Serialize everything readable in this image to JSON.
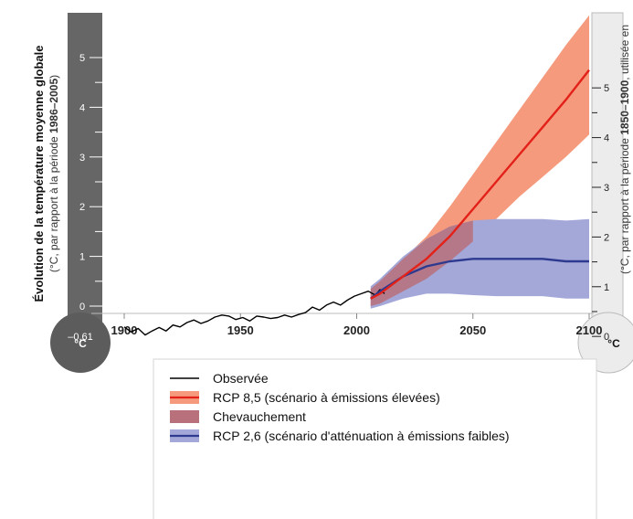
{
  "chart_data": {
    "type": "line",
    "title": "",
    "xlabel": "",
    "ylabel_left": "Évolution de la température moyenne globale",
    "ylabel_left_sub_prefix": "(°C, par rapport à la période ",
    "ylabel_left_sub_bold": "1986–2005",
    "ylabel_left_sub_suffix": ")",
    "ylabel_right_prefix": "(°C, par rapport à la période ",
    "ylabel_right_bold": "1850–1900",
    "ylabel_right_suffix": ", utilisée en",
    "xlim": [
      1895,
      2100
    ],
    "ylim_left": [
      -0.61,
      5.6
    ],
    "ylim_right": [
      0,
      6.2
    ],
    "right_axis_offset": 0.61,
    "x_ticks": [
      1900,
      1950,
      2000,
      2050,
      2100
    ],
    "y_ticks_left": [
      "0",
      "1",
      "2",
      "3",
      "4",
      "5"
    ],
    "y_ticks_right": [
      "0",
      "1",
      "2",
      "3",
      "4",
      "5"
    ],
    "left_floor_label": "–0,61",
    "unit_label_left": "°C",
    "unit_label_right": "°C",
    "grid": false,
    "legend_position": "bottom",
    "series": [
      {
        "name": "Observée",
        "color": "#000000",
        "x": [
          1900,
          1903,
          1906,
          1909,
          1912,
          1915,
          1918,
          1921,
          1924,
          1927,
          1930,
          1933,
          1936,
          1939,
          1942,
          1945,
          1948,
          1951,
          1954,
          1957,
          1960,
          1963,
          1966,
          1969,
          1972,
          1975,
          1978,
          1981,
          1984,
          1987,
          1990,
          1993,
          1996,
          1999,
          2002,
          2005,
          2008,
          2010,
          2012
        ],
        "y": [
          -0.42,
          -0.52,
          -0.45,
          -0.58,
          -0.5,
          -0.43,
          -0.5,
          -0.38,
          -0.42,
          -0.33,
          -0.28,
          -0.35,
          -0.3,
          -0.22,
          -0.18,
          -0.2,
          -0.27,
          -0.23,
          -0.3,
          -0.2,
          -0.22,
          -0.25,
          -0.23,
          -0.18,
          -0.22,
          -0.17,
          -0.13,
          -0.02,
          -0.08,
          0.02,
          0.08,
          0.02,
          0.12,
          0.2,
          0.25,
          0.3,
          0.22,
          0.33,
          0.25
        ]
      },
      {
        "name": "RCP 8,5 (scénario à émissions élevées)",
        "color": "#e32119",
        "band_color": "#f59a7d",
        "x": [
          2006,
          2010,
          2020,
          2030,
          2040,
          2050,
          2060,
          2070,
          2080,
          2090,
          2100
        ],
        "y": [
          0.15,
          0.25,
          0.6,
          0.95,
          1.4,
          1.95,
          2.5,
          3.05,
          3.6,
          4.15,
          4.75
        ],
        "low": [
          0.0,
          0.05,
          0.3,
          0.55,
          0.9,
          1.3,
          1.75,
          2.2,
          2.6,
          3.0,
          3.45
        ],
        "high": [
          0.35,
          0.5,
          0.95,
          1.4,
          2.0,
          2.65,
          3.3,
          3.95,
          4.6,
          5.25,
          5.85
        ]
      },
      {
        "name": "Chevauchement",
        "color": "#b8707a",
        "x": [
          2006,
          2040
        ],
        "y": [
          0.25,
          1.2
        ]
      },
      {
        "name": "RCP 2,6 (scénario d'atténuation à émissions faibles)",
        "color": "#2e3a8f",
        "band_color": "#a4a8d8",
        "x": [
          2006,
          2010,
          2020,
          2030,
          2040,
          2050,
          2060,
          2070,
          2080,
          2090,
          2100
        ],
        "y": [
          0.15,
          0.3,
          0.6,
          0.8,
          0.9,
          0.95,
          0.95,
          0.95,
          0.95,
          0.9,
          0.9
        ],
        "low": [
          -0.05,
          0.0,
          0.15,
          0.25,
          0.25,
          0.22,
          0.2,
          0.2,
          0.2,
          0.15,
          0.15
        ],
        "high": [
          0.4,
          0.55,
          1.0,
          1.35,
          1.6,
          1.72,
          1.75,
          1.75,
          1.75,
          1.72,
          1.75
        ]
      }
    ]
  },
  "legend": {
    "items": [
      {
        "label": "Observée",
        "kind": "line",
        "color": "#000000"
      },
      {
        "label": "RCP 8,5 (scénario à émissions élevées)",
        "kind": "band",
        "color": "#f59a7d",
        "line_color": "#e32119"
      },
      {
        "label": "Chevauchement",
        "kind": "patch",
        "color": "#b8707a"
      },
      {
        "label": "RCP 2,6 (scénario d'atténuation à émissions faibles)",
        "kind": "band",
        "color": "#a4a8d8",
        "line_color": "#2e3a8f"
      }
    ]
  },
  "colors": {
    "thermo_left": "#666666",
    "thermo_right": "#ececec",
    "thermo_right_border": "#bbbbbb",
    "axis": "#bbbbbb"
  }
}
